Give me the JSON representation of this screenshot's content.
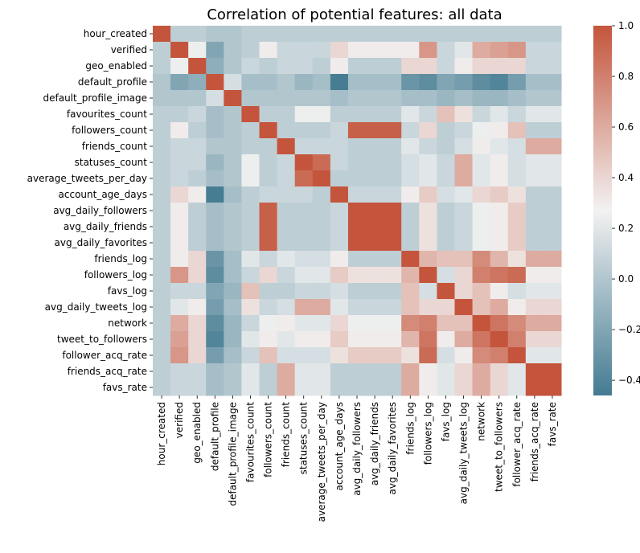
{
  "chart_data": {
    "type": "heatmap",
    "title": "Correlation of potential features: all data",
    "xlabel": "",
    "ylabel": "",
    "labels": [
      "hour_created",
      "verified",
      "geo_enabled",
      "default_profile",
      "default_profile_image",
      "favourites_count",
      "followers_count",
      "friends_count",
      "statuses_count",
      "average_tweets_per_day",
      "account_age_days",
      "avg_daily_followers",
      "avg_daily_friends",
      "avg_daily_favorites",
      "friends_log",
      "followers_log",
      "favs_log",
      "avg_daily_tweets_log",
      "network",
      "tweet_to_followers",
      "follower_acq_rate",
      "friends_acq_rate",
      "favs_rate"
    ],
    "values": [
      [
        1.0,
        0.05,
        0.05,
        0.0,
        0.0,
        0.05,
        0.05,
        0.05,
        0.05,
        0.05,
        0.05,
        0.05,
        0.05,
        0.05,
        0.05,
        0.05,
        0.05,
        0.05,
        0.05,
        0.05,
        0.05,
        0.05,
        0.05
      ],
      [
        0.05,
        1.0,
        0.25,
        -0.2,
        0.0,
        0.05,
        0.3,
        0.1,
        0.1,
        0.1,
        0.4,
        0.3,
        0.3,
        0.3,
        0.3,
        0.7,
        0.1,
        0.2,
        0.6,
        0.65,
        0.7,
        0.1,
        0.1
      ],
      [
        0.05,
        0.25,
        1.0,
        -0.15,
        0.0,
        0.1,
        0.05,
        0.1,
        0.1,
        0.05,
        0.3,
        0.05,
        0.05,
        0.05,
        0.4,
        0.4,
        0.1,
        0.3,
        0.4,
        0.4,
        0.4,
        0.1,
        0.1
      ],
      [
        0.0,
        -0.2,
        -0.15,
        1.0,
        0.15,
        -0.05,
        -0.05,
        0.0,
        -0.1,
        -0.05,
        -0.45,
        -0.05,
        -0.05,
        -0.05,
        -0.3,
        -0.35,
        -0.2,
        -0.25,
        -0.35,
        -0.4,
        -0.25,
        -0.05,
        -0.05
      ],
      [
        0.0,
        0.0,
        0.0,
        0.15,
        1.0,
        0.0,
        0.0,
        0.0,
        0.0,
        0.0,
        -0.05,
        0.0,
        0.0,
        0.0,
        -0.05,
        -0.05,
        -0.1,
        -0.05,
        -0.1,
        -0.1,
        -0.05,
        0.0,
        0.0
      ],
      [
        0.05,
        0.05,
        0.1,
        -0.05,
        0.0,
        1.0,
        0.05,
        0.05,
        0.25,
        0.25,
        0.05,
        0.05,
        0.05,
        0.05,
        0.2,
        0.1,
        0.5,
        0.35,
        0.1,
        0.2,
        0.1,
        0.2,
        0.2
      ],
      [
        0.05,
        0.3,
        0.05,
        -0.05,
        0.0,
        0.05,
        1.0,
        0.05,
        0.05,
        0.05,
        0.1,
        0.95,
        0.95,
        0.95,
        0.1,
        0.4,
        0.05,
        0.1,
        0.25,
        0.3,
        0.5,
        0.05,
        0.05
      ],
      [
        0.05,
        0.1,
        0.1,
        0.0,
        0.0,
        0.05,
        0.05,
        1.0,
        0.1,
        0.1,
        0.1,
        0.05,
        0.05,
        0.05,
        0.2,
        0.1,
        0.05,
        0.15,
        0.3,
        0.2,
        0.15,
        0.6,
        0.6
      ],
      [
        0.05,
        0.1,
        0.1,
        -0.1,
        0.0,
        0.25,
        0.05,
        0.1,
        1.0,
        0.9,
        0.1,
        0.05,
        0.05,
        0.05,
        0.15,
        0.2,
        0.1,
        0.6,
        0.2,
        0.3,
        0.15,
        0.2,
        0.2
      ],
      [
        0.05,
        0.1,
        0.05,
        -0.05,
        0.0,
        0.25,
        0.05,
        0.1,
        0.9,
        1.0,
        0.05,
        0.05,
        0.05,
        0.05,
        0.15,
        0.2,
        0.1,
        0.6,
        0.2,
        0.3,
        0.15,
        0.2,
        0.2
      ],
      [
        0.05,
        0.4,
        0.3,
        -0.45,
        -0.05,
        0.05,
        0.1,
        0.1,
        0.1,
        0.05,
        1.0,
        0.1,
        0.1,
        0.1,
        0.3,
        0.45,
        0.15,
        0.2,
        0.4,
        0.45,
        0.35,
        0.05,
        0.05
      ],
      [
        0.05,
        0.3,
        0.05,
        -0.05,
        0.0,
        0.05,
        0.95,
        0.05,
        0.05,
        0.05,
        0.1,
        1.0,
        1.0,
        1.0,
        0.05,
        0.35,
        0.05,
        0.1,
        0.25,
        0.3,
        0.45,
        0.05,
        0.05
      ],
      [
        0.05,
        0.3,
        0.05,
        -0.05,
        0.0,
        0.05,
        0.95,
        0.05,
        0.05,
        0.05,
        0.1,
        1.0,
        1.0,
        1.0,
        0.05,
        0.35,
        0.05,
        0.1,
        0.25,
        0.3,
        0.45,
        0.05,
        0.05
      ],
      [
        0.05,
        0.3,
        0.05,
        -0.05,
        0.0,
        0.05,
        0.95,
        0.05,
        0.05,
        0.05,
        0.1,
        1.0,
        1.0,
        1.0,
        0.05,
        0.35,
        0.05,
        0.1,
        0.25,
        0.3,
        0.45,
        0.05,
        0.05
      ],
      [
        0.05,
        0.3,
        0.4,
        -0.3,
        -0.05,
        0.2,
        0.1,
        0.2,
        0.15,
        0.15,
        0.3,
        0.05,
        0.05,
        0.05,
        1.0,
        0.55,
        0.5,
        0.5,
        0.75,
        0.55,
        0.35,
        0.6,
        0.6
      ],
      [
        0.05,
        0.7,
        0.4,
        -0.35,
        -0.05,
        0.1,
        0.4,
        0.1,
        0.2,
        0.2,
        0.45,
        0.35,
        0.35,
        0.35,
        0.55,
        1.0,
        0.15,
        0.4,
        0.8,
        0.85,
        0.9,
        0.3,
        0.3
      ],
      [
        0.05,
        0.1,
        0.1,
        -0.2,
        -0.1,
        0.5,
        0.05,
        0.05,
        0.1,
        0.1,
        0.15,
        0.05,
        0.05,
        0.05,
        0.5,
        0.15,
        1.0,
        0.4,
        0.5,
        0.3,
        0.15,
        0.2,
        0.2
      ],
      [
        0.05,
        0.2,
        0.3,
        -0.25,
        -0.05,
        0.35,
        0.1,
        0.15,
        0.6,
        0.6,
        0.2,
        0.1,
        0.1,
        0.1,
        0.5,
        0.4,
        0.4,
        1.0,
        0.5,
        0.6,
        0.3,
        0.4,
        0.4
      ],
      [
        0.05,
        0.6,
        0.4,
        -0.35,
        -0.1,
        0.1,
        0.25,
        0.3,
        0.2,
        0.2,
        0.4,
        0.25,
        0.25,
        0.25,
        0.75,
        0.8,
        0.5,
        0.5,
        1.0,
        0.85,
        0.75,
        0.6,
        0.6
      ],
      [
        0.05,
        0.65,
        0.4,
        -0.4,
        -0.1,
        0.2,
        0.3,
        0.2,
        0.3,
        0.3,
        0.45,
        0.3,
        0.3,
        0.3,
        0.55,
        0.85,
        0.3,
        0.6,
        0.85,
        1.0,
        0.8,
        0.4,
        0.4
      ],
      [
        0.05,
        0.7,
        0.4,
        -0.25,
        -0.05,
        0.1,
        0.5,
        0.15,
        0.15,
        0.15,
        0.35,
        0.45,
        0.45,
        0.45,
        0.35,
        0.9,
        0.15,
        0.3,
        0.75,
        0.8,
        1.0,
        0.2,
        0.2
      ],
      [
        0.05,
        0.1,
        0.1,
        -0.05,
        0.0,
        0.2,
        0.05,
        0.6,
        0.2,
        0.2,
        0.05,
        0.05,
        0.05,
        0.05,
        0.6,
        0.3,
        0.2,
        0.4,
        0.6,
        0.4,
        0.2,
        1.0,
        1.0
      ],
      [
        0.05,
        0.1,
        0.1,
        -0.05,
        0.0,
        0.2,
        0.05,
        0.6,
        0.2,
        0.2,
        0.05,
        0.05,
        0.05,
        0.05,
        0.6,
        0.3,
        0.2,
        0.4,
        0.6,
        0.4,
        0.2,
        1.0,
        1.0
      ]
    ],
    "vmin": -0.46,
    "vmax": 1.0,
    "colorbar_ticks": [
      "1.0",
      "0.8",
      "0.6",
      "0.4",
      "0.2",
      "0.0",
      "−0.2",
      "−0.4"
    ],
    "colorbar_tick_values": [
      1.0,
      0.8,
      0.6,
      0.4,
      0.2,
      0.0,
      -0.2,
      -0.4
    ],
    "colormap": {
      "low": "#447b92",
      "mid": "#f2f2f2",
      "high": "#c4553c"
    }
  }
}
